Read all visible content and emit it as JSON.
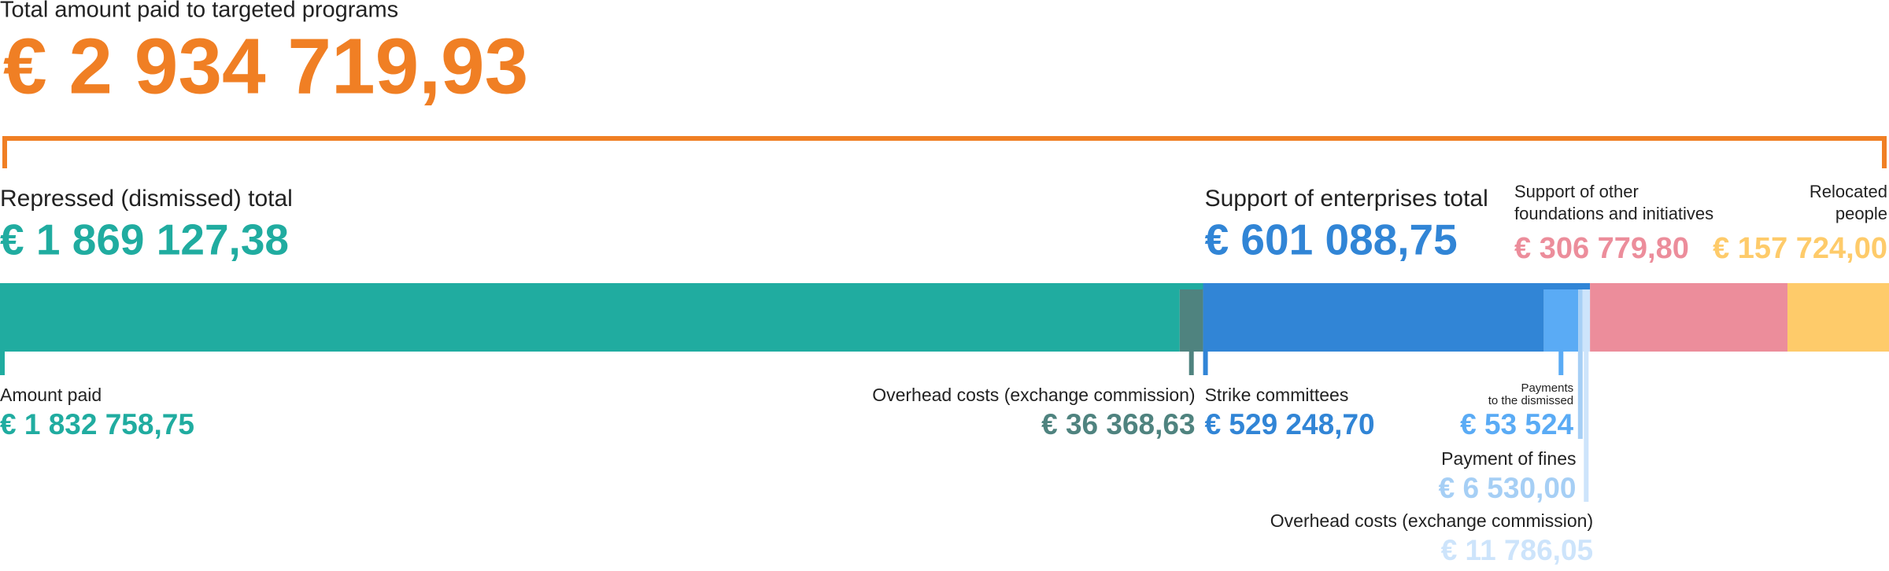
{
  "chart_data": {
    "type": "stacked-bar",
    "title": "Total amount paid to targeted programs",
    "total": 2934719.93,
    "total_label": "€ 2 934 719,93",
    "total_color": "#f07f24",
    "groups": [
      {
        "name": [
          "Repressed (dismissed) total"
        ],
        "value": 1869127.38,
        "value_label": "€ 1 869 127,38",
        "color": "#20aca0",
        "segments": [
          {
            "name": [
              "Amount paid"
            ],
            "value": 1832758.75,
            "value_label": "€ 1 832 758,75",
            "color": "#20aca0"
          },
          {
            "name": [
              "Overhead costs (exchange commission)"
            ],
            "value": 36368.63,
            "value_label": "€ 36 368,63",
            "color": "#4f837f"
          }
        ]
      },
      {
        "name": [
          "Support of enterprises total"
        ],
        "value": 601088.75,
        "value_label": "€ 601 088,75",
        "color": "#3185d6",
        "segments": [
          {
            "name": [
              "Strike committees"
            ],
            "value": 529248.7,
            "value_label": "€ 529 248,70",
            "color": "#3185d6"
          },
          {
            "name": [
              "Payments",
              "to the dismissed"
            ],
            "value": 53524,
            "value_label": "€ 53 524",
            "color": "#5aabf5"
          },
          {
            "name": [
              "Payment of fines"
            ],
            "value": 6530.0,
            "value_label": "€ 6 530,00",
            "color": "#a6cff5"
          },
          {
            "name": [
              "Overhead costs (exchange commission)"
            ],
            "value": 11786.05,
            "value_label": "€ 11 786,05",
            "color": "#cde4fb"
          }
        ]
      },
      {
        "name": [
          "Support of other",
          "foundations and initiatives"
        ],
        "value": 306779.8,
        "value_label": "€ 306 779,80",
        "color": "#ec8d9b"
      },
      {
        "name": [
          "Relocated",
          "people"
        ],
        "value": 157724.0,
        "value_label": "€ 157 724,00",
        "color": "#fecb6a"
      }
    ]
  }
}
